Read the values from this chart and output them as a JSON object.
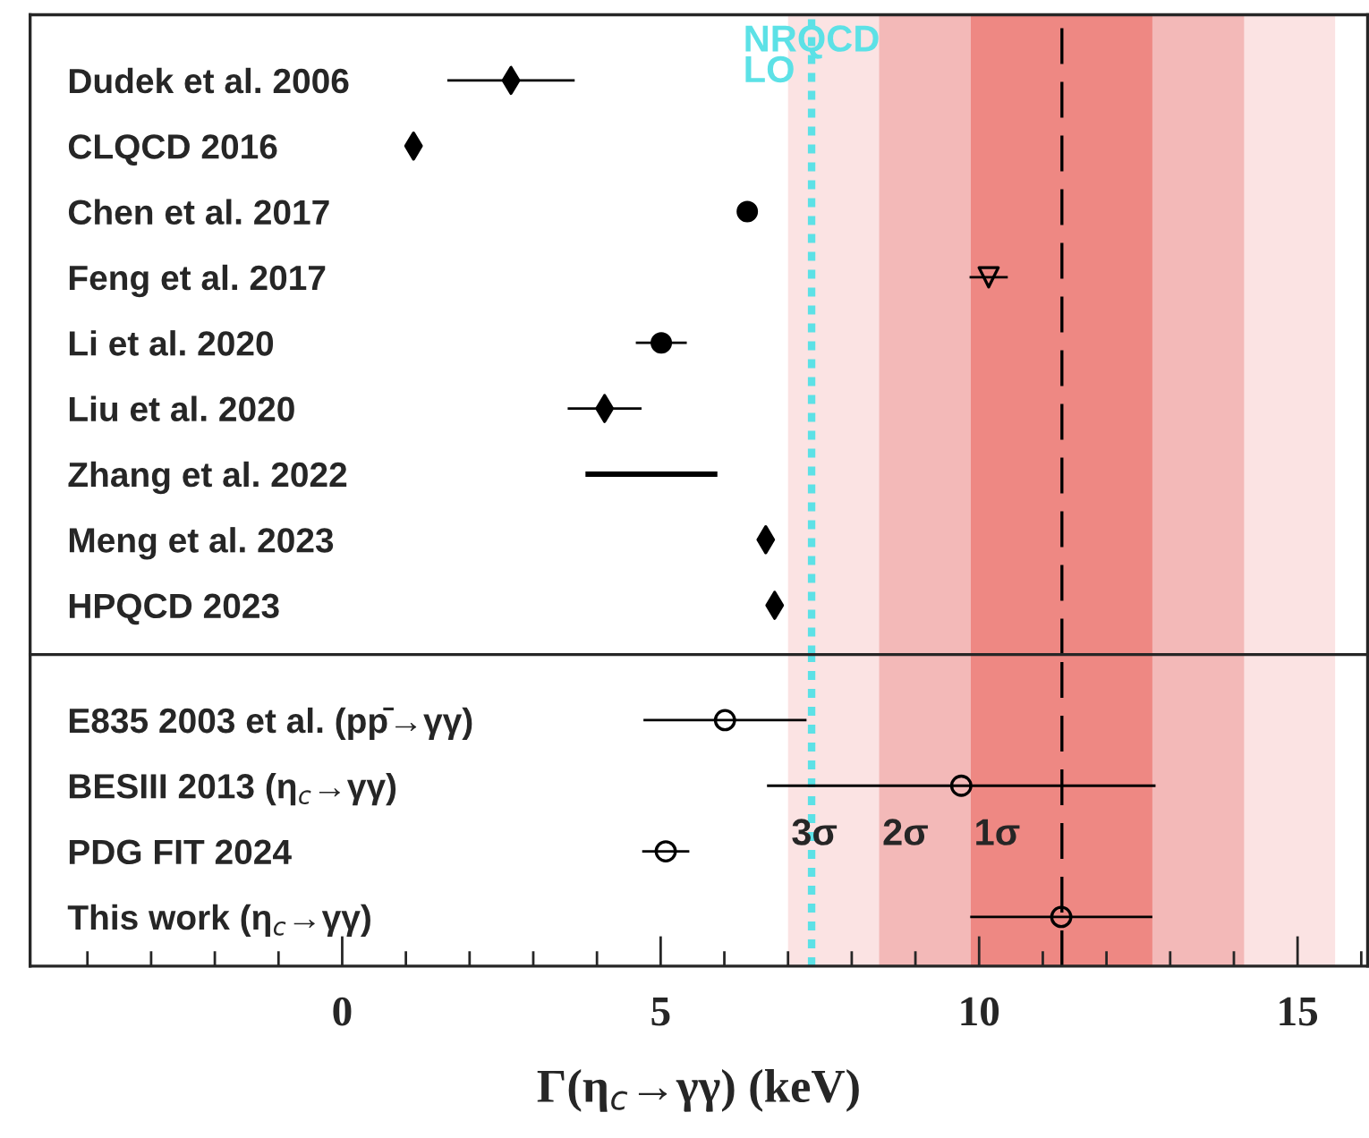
{
  "chart_data": [
    {
      "type": "scatter",
      "orientation": "horizontal",
      "categories": [
        "Dudek et al. 2006",
        "CLQCD 2016",
        "Chen et al. 2017",
        "Feng et al. 2017",
        "Li et al. 2020",
        "Liu et al. 2020",
        "Zhang et al. 2022",
        "Meng et al. 2023",
        "HPQCD 2023"
      ],
      "series": [
        {
          "marker": "diamond",
          "color": "#000000",
          "values": [
            2.65,
            1.12,
            null,
            null,
            null,
            4.12,
            null,
            6.65,
            6.79
          ],
          "errors": [
            1.0,
            null,
            null,
            null,
            null,
            0.58,
            null,
            null,
            null
          ]
        },
        {
          "marker": "circle",
          "color": "#000000",
          "values": [
            null,
            null,
            6.36,
            null,
            5.01,
            null,
            null,
            null,
            null
          ],
          "errors": [
            null,
            null,
            null,
            null,
            0.4,
            null,
            null,
            null,
            null
          ]
        },
        {
          "marker": "triangle",
          "color": "#000000",
          "values": [
            null,
            null,
            null,
            10.15,
            null,
            null,
            null,
            null,
            null
          ],
          "errors": [
            null,
            null,
            null,
            0.3,
            null,
            null,
            null,
            null,
            null
          ]
        },
        {
          "type": "bar",
          "color": "#000000",
          "values": [
            null,
            null,
            null,
            null,
            null,
            null,
            2.11,
            null,
            null
          ],
          "base": [
            null,
            null,
            null,
            null,
            null,
            null,
            3.8,
            null,
            null
          ]
        }
      ],
      "xlim": [
        -4.9,
        16.1
      ],
      "tick_labels": "y",
      "bands": [
        {
          "axis": "x",
          "from": 7.0,
          "to": 15.59,
          "color": "#fbe3e3"
        },
        {
          "axis": "x",
          "from": 8.43,
          "to": 14.16,
          "color": "#f3b9b8"
        },
        {
          "axis": "x",
          "from": 9.87,
          "to": 12.72,
          "color": "#ee8883"
        }
      ],
      "ref_lines": [
        {
          "axis": "x",
          "value": 11.3,
          "color": "#000000",
          "line_style": "dashed"
        },
        {
          "axis": "x",
          "value": 7.37,
          "label": "NRQCD\nLO",
          "color": "#5ce1e6",
          "line_style": "dotted"
        }
      ]
    },
    {
      "type": "scatter",
      "orientation": "horizontal",
      "categories": [
        "E835 2003 et al. (pp̄→γγ)",
        "BESIII 2013 (η$_{c}$→γγ)",
        "PDG FIT 2024",
        "This work (η$_{c}$→γγ)"
      ],
      "series": [
        {
          "marker": "circle",
          "color": "#000000",
          "values": [
            6.01,
            9.72,
            5.08,
            11.29
          ],
          "errors": [
            1.28,
            3.05,
            0.37,
            1.43
          ]
        }
      ],
      "xlim": [
        -4.9,
        16.1
      ],
      "xticks": [
        {
          "value": -4,
          "label": null
        },
        {
          "value": -3,
          "label": null
        },
        {
          "value": -2,
          "label": null
        },
        {
          "value": -1,
          "label": null
        },
        0,
        {
          "value": 1,
          "label": null
        },
        {
          "value": 2,
          "label": null
        },
        {
          "value": 3,
          "label": null
        },
        {
          "value": 4,
          "label": null
        },
        5,
        {
          "value": 6,
          "label": null
        },
        {
          "value": 7,
          "label": null
        },
        {
          "value": 8,
          "label": null
        },
        {
          "value": 9,
          "label": null
        },
        10,
        {
          "value": 11,
          "label": null
        },
        {
          "value": 12,
          "label": null
        },
        {
          "value": 13,
          "label": null
        },
        {
          "value": 14,
          "label": null
        },
        15,
        {
          "value": 16,
          "label": null
        }
      ],
      "xlabel": "Γ(η$_{c}$→γγ) (keV)",
      "bands": [
        {
          "axis": "x",
          "from": 7.0,
          "to": 15.59,
          "color": "#fbe3e3",
          "label": "3σ"
        },
        {
          "axis": "x",
          "from": 8.43,
          "to": 14.16,
          "color": "#f3b9b8",
          "label": "2σ"
        },
        {
          "axis": "x",
          "from": 9.87,
          "to": 12.72,
          "color": "#ee8883",
          "label": "1σ"
        }
      ],
      "ref_lines": [
        {
          "axis": "x",
          "value": 11.3,
          "color": "#000000",
          "line_style": "dashed"
        },
        {
          "axis": "x",
          "value": 7.37,
          "color": "#5ce1e6",
          "line_style": "dotted"
        }
      ]
    }
  ]
}
